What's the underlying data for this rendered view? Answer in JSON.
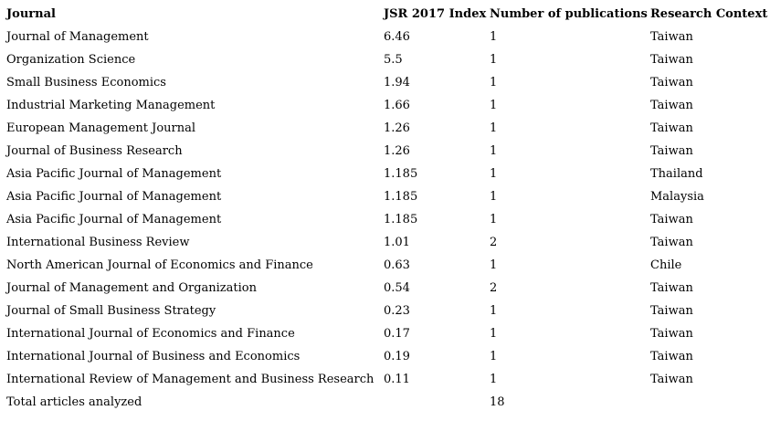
{
  "table": {
    "headers": [
      "Journal",
      "JSR 2017 Index",
      "Number of publications",
      "Research Context"
    ],
    "rows": [
      [
        "Journal of Management",
        "6.46",
        "1",
        "Taiwan"
      ],
      [
        "Organization Science",
        "5.5",
        "1",
        "Taiwan"
      ],
      [
        "Small Business Economics",
        "1.94",
        "1",
        "Taiwan"
      ],
      [
        "Industrial Marketing Management",
        "1.66",
        "1",
        "Taiwan"
      ],
      [
        "European Management Journal",
        "1.26",
        "1",
        "Taiwan"
      ],
      [
        "Journal of Business Research",
        "1.26",
        "1",
        "Taiwan"
      ],
      [
        "Asia Pacific Journal of Management",
        "1.185",
        "1",
        "Thailand"
      ],
      [
        "Asia Pacific Journal of Management",
        "1.185",
        "1",
        "Malaysia"
      ],
      [
        "Asia Pacific Journal of Management",
        "1.185",
        "1",
        "Taiwan"
      ],
      [
        "International Business Review",
        "1.01",
        "2",
        "Taiwan"
      ],
      [
        "North American Journal of Economics and Finance",
        "0.63",
        "1",
        "Chile"
      ],
      [
        "Journal of Management and Organization",
        "0.54",
        "2",
        "Taiwan"
      ],
      [
        "Journal of Small Business Strategy",
        "0.23",
        "1",
        "Taiwan"
      ],
      [
        "International Journal of Economics and Finance",
        "0.17",
        "1",
        "Taiwan"
      ],
      [
        "International Journal of Business and Economics",
        "0.19",
        "1",
        "Taiwan"
      ],
      [
        "International Review of Management and Business Research",
        "0.11",
        "1",
        "Taiwan"
      ],
      [
        "Total articles analyzed",
        "",
        "18",
        ""
      ]
    ],
    "colors": {
      "background": "#ffffff",
      "text": "#000000"
    }
  }
}
